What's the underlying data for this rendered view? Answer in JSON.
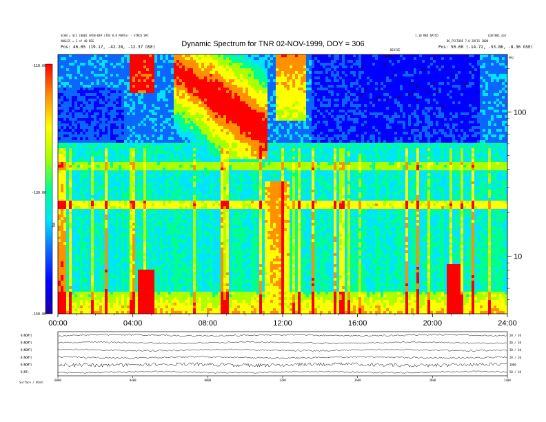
{
  "header": {
    "title": "Dynamic Spectrum for TNR 02-NOV-1999, DOY = 306",
    "left_line1": "SCAN = SCI (0002 SPIN-DEP (TDS 0.0 MSPS)) - STRCD SPC",
    "left_line2": "ANGLES = 2 of 40 DEG",
    "left_line3": "Pos:   46.05 (19.17, -42.28, -12.37 GSE)",
    "mid_line1": "1.10 MED DATCO",
    "right_line1": "LDE7001.dat",
    "mid_line2": "BG_PICTURE 7.0 2DF15 2000",
    "right_line3": "Pos:   50.60 (-14.72, -53.86, -8.36 GSE)",
    "device_label": "DEVICE"
  },
  "colorbar": {
    "ticks": [
      "-110.00",
      "-130.00",
      "-150.00"
    ],
    "label": "TNR"
  },
  "freq_axis": {
    "unit_label": "kHz",
    "ticks": [
      "100",
      "10"
    ]
  },
  "chart_data": {
    "type": "heatmap",
    "title": "Dynamic Spectrum for TNR 02-NOV-1999, DOY = 306",
    "x_ticks": [
      "00:00",
      "04:00",
      "08:00",
      "12:00",
      "16:00",
      "20:00",
      "24:00"
    ],
    "x_range_hours": [
      0,
      24
    ],
    "y_scale": "log",
    "y_range_khz": [
      4,
      250
    ],
    "y_ticks_khz": [
      100,
      10
    ],
    "z_range": [
      -150,
      -110
    ],
    "z_ticks": [
      -110,
      -130,
      -150
    ],
    "colormap": [
      "#1a00a0",
      "#0000ff",
      "#0a66ff",
      "#00e4ff",
      "#00ff90",
      "#aaff00",
      "#ffff00",
      "#ff9000",
      "#ff0000"
    ]
  },
  "mag_panel": {
    "rows": [
      {
        "label": "B(NOMT)",
        "right": "20 / 10"
      },
      {
        "label": "B(NOMT)",
        "right": "20 / 10"
      },
      {
        "label": "B(NOMT)",
        "right": "20 / 10"
      },
      {
        "label": "B(NOMT)",
        "right": "20 / 10"
      },
      {
        "label": "B(NOMT)",
        "right": "1000"
      },
      {
        "label": "B(NT)",
        "right": "50 / 10"
      }
    ],
    "x_ticks": [
      "0000",
      "0400",
      "0800",
      "1200",
      "1600",
      "2000",
      "2400"
    ],
    "footer_left": "Surface / Wind"
  }
}
